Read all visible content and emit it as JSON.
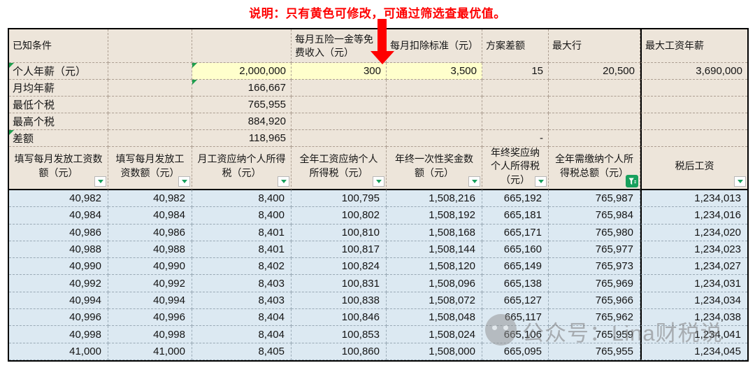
{
  "colors": {
    "annotation_red": "#FE0000",
    "panel_beige": "#EDE5DA",
    "editable_yellow": "#FFFFCC",
    "data_blue": "#DCE9F2",
    "filter_green": "#18A05D"
  },
  "annotation": {
    "text": "说明：只有黄色可修改，可通过筛选查最优值。",
    "pointer": "red-down-arrow"
  },
  "known_section": {
    "corner_label": "已知条件",
    "col_headers": [
      "每月五险一金等免费收入（元）",
      "每月扣除标准（元）",
      "方案差额",
      "最大行",
      "最大工资年薪"
    ],
    "rows": [
      {
        "label": "个人年薪（元）",
        "label_flag": true,
        "value": "2,000,000",
        "value_yellow": true,
        "value_flag": true,
        "extras": [
          "300",
          "3,500",
          "15",
          "20,500",
          "3,690,000"
        ],
        "extras_yellow": 2
      },
      {
        "label": "月均年薪",
        "value": "166,667",
        "value_flag": true
      },
      {
        "label": "最低个税",
        "value": "765,955"
      },
      {
        "label": "最高个税",
        "value": "884,920"
      },
      {
        "label": "差额",
        "label_flag": true,
        "value": "118,965",
        "extras": [
          "",
          "",
          "-",
          "",
          ""
        ]
      }
    ]
  },
  "filter_headers": [
    {
      "label": "填写每月发放工资数额（元）",
      "filter": "dropdown"
    },
    {
      "label": "填写每月发放工资数额（元）",
      "filter": "dropdown"
    },
    {
      "label": "月工资应纳个人所得税（元）",
      "filter": "dropdown"
    },
    {
      "label": "全年工资应纳个人所得税（元）",
      "filter": "dropdown"
    },
    {
      "label": "年终一次性奖金数额（元）",
      "filter": "dropdown"
    },
    {
      "label": "年终奖应纳个人所得税（元）",
      "filter": "dropdown"
    },
    {
      "label": "全年需缴纳个人所得税总额（元）",
      "filter": "active"
    },
    {
      "label": "税后工资",
      "filter": "dropdown"
    }
  ],
  "data_rows": [
    [
      "40,982",
      "40,982",
      "8,400",
      "100,795",
      "1,508,216",
      "665,192",
      "765,987",
      "1,234,013"
    ],
    [
      "40,984",
      "40,984",
      "8,400",
      "100,802",
      "1,508,192",
      "665,181",
      "765,984",
      "1,234,016"
    ],
    [
      "40,986",
      "40,986",
      "8,401",
      "100,810",
      "1,508,168",
      "665,171",
      "765,980",
      "1,234,020"
    ],
    [
      "40,988",
      "40,988",
      "8,401",
      "100,817",
      "1,508,144",
      "665,160",
      "765,977",
      "1,234,023"
    ],
    [
      "40,990",
      "40,990",
      "8,402",
      "100,824",
      "1,508,120",
      "665,149",
      "765,973",
      "1,234,027"
    ],
    [
      "40,992",
      "40,992",
      "8,403",
      "100,831",
      "1,508,096",
      "665,138",
      "765,969",
      "1,234,031"
    ],
    [
      "40,994",
      "40,994",
      "8,403",
      "100,838",
      "1,508,072",
      "665,127",
      "765,966",
      "1,234,034"
    ],
    [
      "40,996",
      "40,996",
      "8,404",
      "100,846",
      "1,508,048",
      "665,117",
      "765,962",
      "1,234,038"
    ],
    [
      "40,998",
      "40,998",
      "8,404",
      "100,853",
      "1,508,024",
      "665,106",
      "765,959",
      "1,234,041"
    ],
    [
      "41,000",
      "41,000",
      "8,405",
      "100,860",
      "1,508,000",
      "665,095",
      "765,955",
      "1,234,045"
    ]
  ],
  "watermark": {
    "text": "公众号：Lina财税说"
  }
}
